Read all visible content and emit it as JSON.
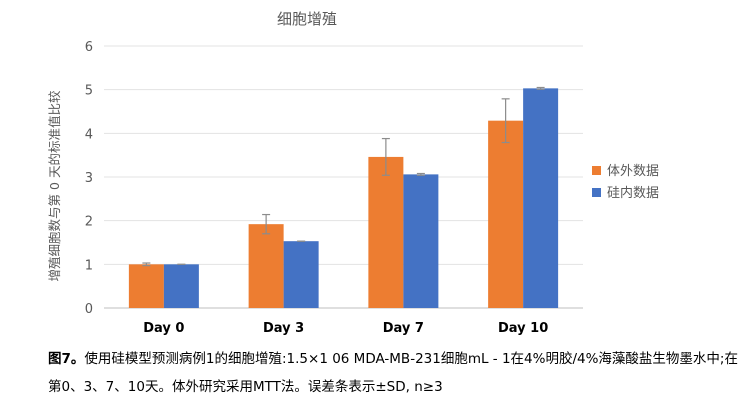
{
  "chart_data": {
    "type": "bar",
    "title": "细胞增殖",
    "ylabel": "增殖细胞数与第 0 天的标准值比较",
    "xlabel": "",
    "categories": [
      "Day 0",
      "Day 3",
      "Day 7",
      "Day 10"
    ],
    "ylim": [
      0,
      6
    ],
    "yticks": [
      "0",
      "1",
      "2",
      "3",
      "4",
      "5",
      "6"
    ],
    "grid": true,
    "legend_position": "right",
    "series": [
      {
        "name": "体外数据",
        "color": "#ED7D31",
        "values": [
          1.0,
          1.92,
          3.46,
          4.29
        ],
        "errors": [
          0.03,
          0.22,
          0.42,
          0.5
        ]
      },
      {
        "name": "硅内数据",
        "color": "#4472C4",
        "values": [
          1.0,
          1.53,
          3.06,
          5.03
        ],
        "errors": [
          0.0,
          0.0,
          0.02,
          0.02
        ]
      }
    ]
  },
  "caption": {
    "figure_label": "图7。",
    "text": "使用硅模型预测病例1的细胞增殖:1.5×1 06 MDA-MB-231细胞mL - 1在4%明胶/4%海藻酸盐生物墨水中;在第0、3、7、10天。体外研究采用MTT法。误差条表示±SD, n≥3"
  }
}
